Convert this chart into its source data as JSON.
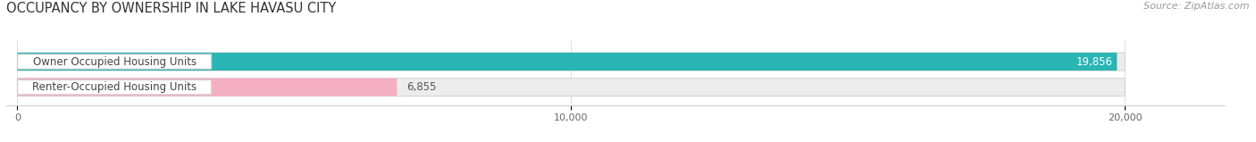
{
  "title": "OCCUPANCY BY OWNERSHIP IN LAKE HAVASU CITY",
  "source": "Source: ZipAtlas.com",
  "categories": [
    "Owner Occupied Housing Units",
    "Renter-Occupied Housing Units"
  ],
  "values": [
    19856,
    6855
  ],
  "bar_colors": [
    "#2ab5b5",
    "#f5afc4"
  ],
  "bar_bg_color": "#ececec",
  "xlim_max": 20000,
  "xticks": [
    0,
    10000,
    20000
  ],
  "xtick_labels": [
    "0",
    "10,000",
    "20,000"
  ],
  "title_fontsize": 10.5,
  "source_fontsize": 8,
  "label_fontsize": 8.5,
  "value_fontsize": 8.5,
  "background_color": "#ffffff",
  "value_inside_color": "#ffffff",
  "value_outside_color": "#555555",
  "label_text_color": "#444444"
}
